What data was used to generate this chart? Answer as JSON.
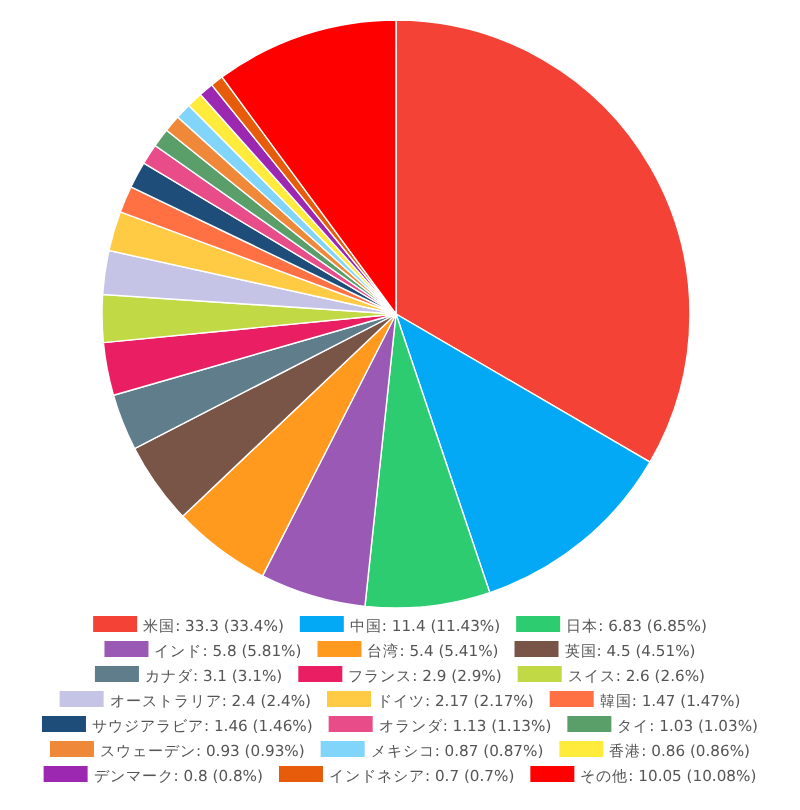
{
  "chart_data": {
    "type": "pie",
    "legend": "bottom",
    "categories": [
      "米国",
      "中国",
      "日本",
      "インド",
      "台湾",
      "英国",
      "カナダ",
      "フランス",
      "スイス",
      "オーストラリア",
      "ドイツ",
      "韓国",
      "サウジアラビア",
      "オランダ",
      "タイ",
      "スウェーデン",
      "メキシコ",
      "香港",
      "デンマーク",
      "インドネシア",
      "その他"
    ],
    "values": [
      33.3,
      11.4,
      6.83,
      5.8,
      5.4,
      4.5,
      3.1,
      2.9,
      2.6,
      2.4,
      2.17,
      1.47,
      1.46,
      1.13,
      1.03,
      0.93,
      0.87,
      0.86,
      0.8,
      0.7,
      10.05
    ],
    "value_labels": [
      "33.3 (33.4%)",
      "11.4 (11.43%)",
      "6.83 (6.85%)",
      "5.8 (5.81%)",
      "5.4 (5.41%)",
      "4.5 (4.51%)",
      "3.1 (3.1%)",
      "2.9 (2.9%)",
      "2.6 (2.6%)",
      "2.4 (2.4%)",
      "2.17 (2.17%)",
      "1.47 (1.47%)",
      "1.46 (1.46%)",
      "1.13 (1.13%)",
      "1.03 (1.03%)",
      "0.93 (0.93%)",
      "0.87 (0.87%)",
      "0.86 (0.86%)",
      "0.8 (0.8%)",
      "0.7 (0.7%)",
      "10.05 (10.08%)"
    ],
    "colors": [
      "#f44336",
      "#03a9f4",
      "#2ecc71",
      "#9b59b6",
      "#ff9a1f",
      "#795548",
      "#607d8b",
      "#e91e63",
      "#c0d944",
      "#c5c3e6",
      "#ffca44",
      "#ff7043",
      "#1e4d7a",
      "#e84c89",
      "#5a9e6a",
      "#f0883a",
      "#81d4fa",
      "#ffeb3b",
      "#9c27b0",
      "#e65c0a",
      "#ff0000"
    ]
  }
}
